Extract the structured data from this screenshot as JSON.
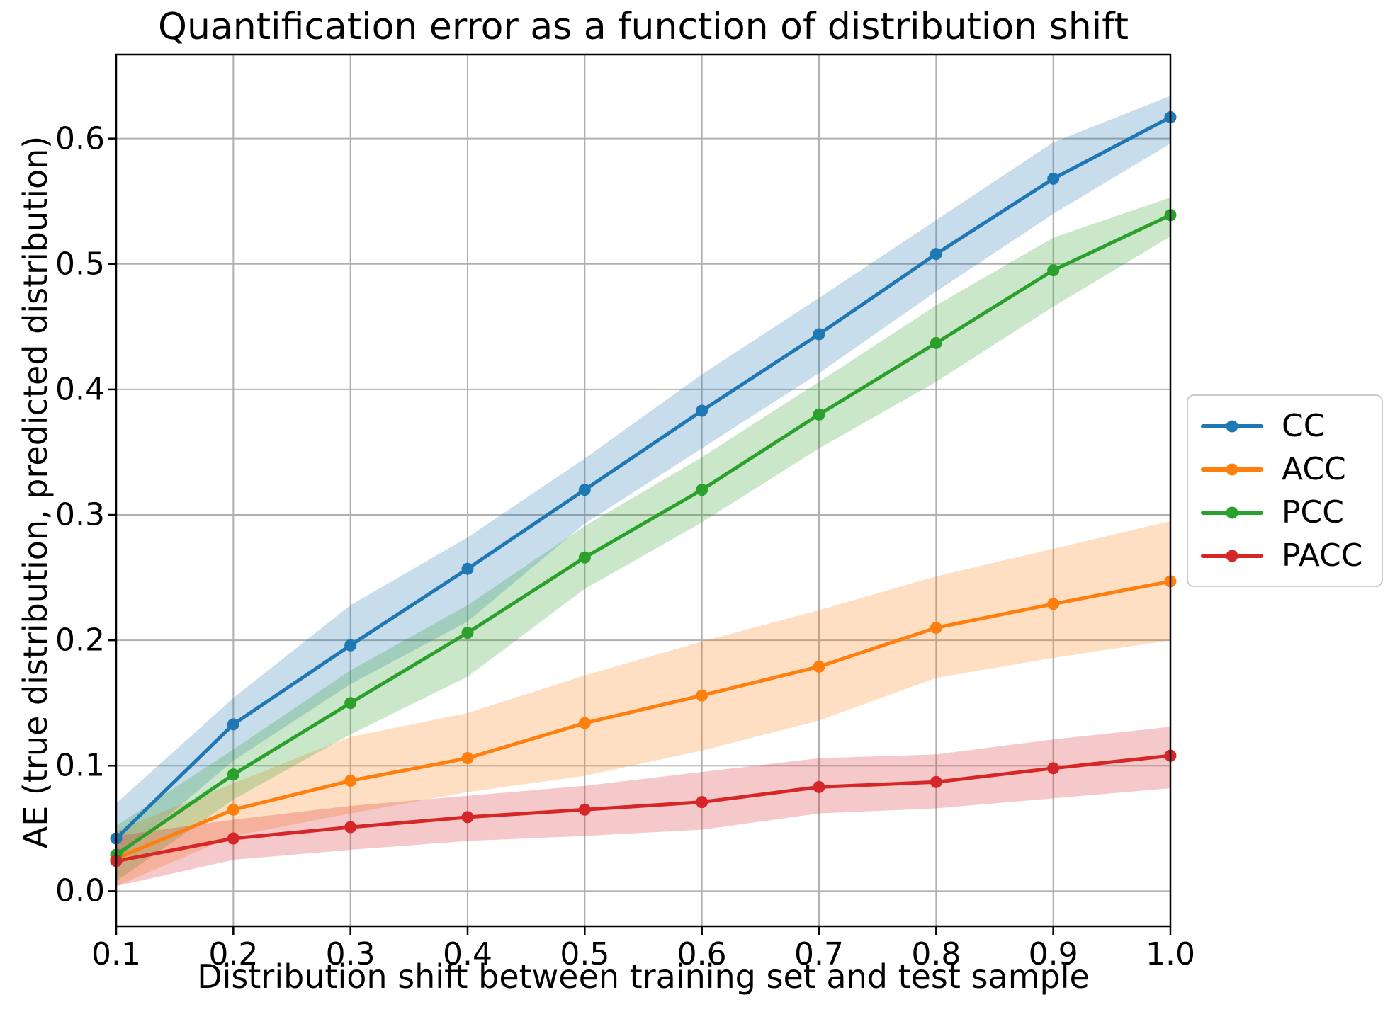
{
  "title": "Quantification error as a function of distribution shift",
  "xlabel": "Distribution shift between training set and test sample",
  "ylabel": "AE (true distribution, predicted distribution)",
  "chart_data": {
    "type": "line",
    "title": "Quantification error as a function of distribution shift",
    "xlabel": "Distribution shift between training set and test sample",
    "ylabel": "AE (true distribution, predicted distribution)",
    "x": [
      0.1,
      0.2,
      0.3,
      0.4,
      0.5,
      0.6,
      0.7,
      0.8,
      0.9,
      1.0
    ],
    "xtick_labels": [
      "0.1",
      "0.2",
      "0.3",
      "0.4",
      "0.5",
      "0.6",
      "0.7",
      "0.8",
      "0.9",
      "1.0"
    ],
    "ytick_values": [
      0.0,
      0.1,
      0.2,
      0.3,
      0.4,
      0.5,
      0.6
    ],
    "ytick_labels": [
      "0.0",
      "0.1",
      "0.2",
      "0.3",
      "0.4",
      "0.5",
      "0.6"
    ],
    "xlim": [
      0.1,
      1.0
    ],
    "ylim": [
      -0.028,
      0.667
    ],
    "grid": true,
    "grid_color": "#b0b0b0",
    "band_alpha": 0.25,
    "legend_position": "right-of-axes",
    "series": [
      {
        "name": "CC",
        "color": "#1f77b4",
        "values": [
          0.042,
          0.133,
          0.196,
          0.257,
          0.32,
          0.383,
          0.444,
          0.508,
          0.568,
          0.617
        ],
        "band_lower": [
          0.025,
          0.104,
          0.165,
          0.215,
          0.293,
          0.353,
          0.413,
          0.478,
          0.54,
          0.596
        ],
        "band_upper": [
          0.07,
          0.154,
          0.228,
          0.282,
          0.345,
          0.412,
          0.473,
          0.535,
          0.597,
          0.634
        ]
      },
      {
        "name": "ACC",
        "color": "#ff7f0e",
        "values": [
          0.026,
          0.065,
          0.088,
          0.106,
          0.134,
          0.156,
          0.179,
          0.21,
          0.229,
          0.247
        ],
        "band_lower": [
          0.004,
          0.044,
          0.062,
          0.079,
          0.092,
          0.112,
          0.136,
          0.17,
          0.186,
          0.2
        ],
        "band_upper": [
          0.048,
          0.086,
          0.123,
          0.142,
          0.172,
          0.199,
          0.224,
          0.251,
          0.273,
          0.295
        ]
      },
      {
        "name": "PCC",
        "color": "#2ca02c",
        "values": [
          0.029,
          0.093,
          0.15,
          0.206,
          0.266,
          0.32,
          0.38,
          0.437,
          0.495,
          0.539
        ],
        "band_lower": [
          0.008,
          0.073,
          0.125,
          0.171,
          0.241,
          0.294,
          0.353,
          0.406,
          0.466,
          0.522
        ],
        "band_upper": [
          0.052,
          0.113,
          0.176,
          0.228,
          0.291,
          0.346,
          0.406,
          0.467,
          0.521,
          0.553
        ]
      },
      {
        "name": "PACC",
        "color": "#d62728",
        "values": [
          0.024,
          0.042,
          0.051,
          0.059,
          0.065,
          0.071,
          0.083,
          0.087,
          0.098,
          0.108
        ],
        "band_lower": [
          0.004,
          0.025,
          0.033,
          0.04,
          0.044,
          0.049,
          0.062,
          0.066,
          0.074,
          0.082
        ],
        "band_upper": [
          0.044,
          0.057,
          0.068,
          0.076,
          0.084,
          0.095,
          0.106,
          0.109,
          0.121,
          0.131
        ]
      }
    ]
  }
}
